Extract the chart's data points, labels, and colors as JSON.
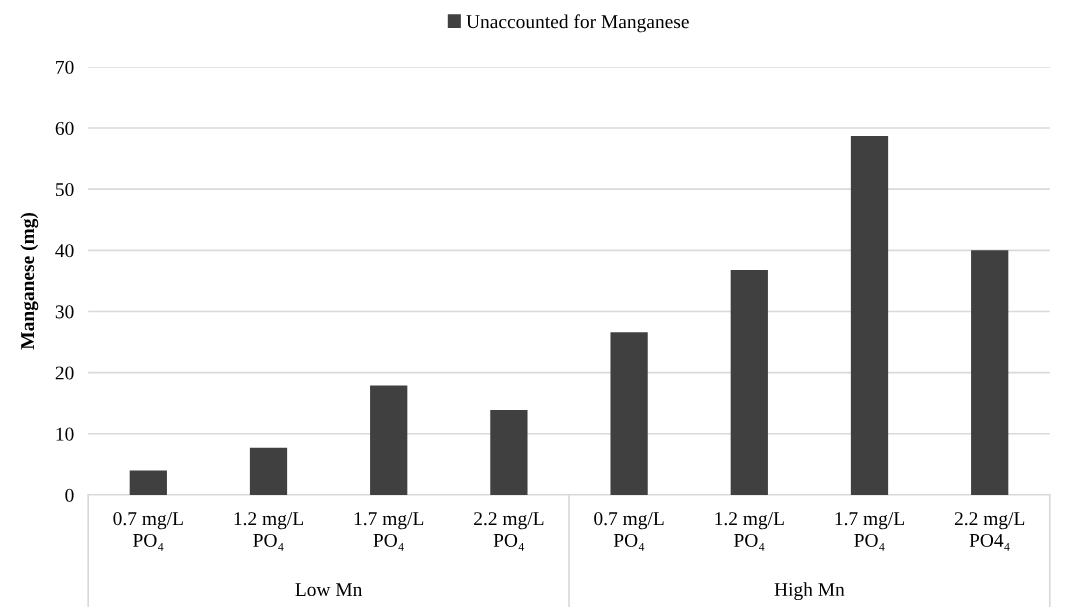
{
  "chart_data": {
    "type": "bar",
    "ylabel": "Manganese (mg)",
    "categories": [
      "0.7 mg/L\nPO₄",
      "1.2 mg/L\nPO₄",
      "1.7 mg/L\nPO₄",
      "2.2 mg/L\nPO₄",
      "0.7 mg/L\nPO₄",
      "1.2 mg/L\nPO₄",
      "1.7 mg/L\nPO₄",
      "2.2 mg/L\nPO4₄"
    ],
    "series": [
      {
        "name": "Unaccounted for Manganese",
        "color": "#404040",
        "values": [
          4.0,
          7.7,
          17.9,
          13.9,
          26.6,
          36.8,
          58.7,
          40.0
        ]
      }
    ],
    "annotations": [
      "Low Mn",
      "High Mn"
    ],
    "ylim": [
      0,
      70
    ],
    "yticks": [
      0,
      10,
      20,
      30,
      40,
      50,
      60,
      70
    ],
    "grid": "y",
    "legend": "top"
  }
}
